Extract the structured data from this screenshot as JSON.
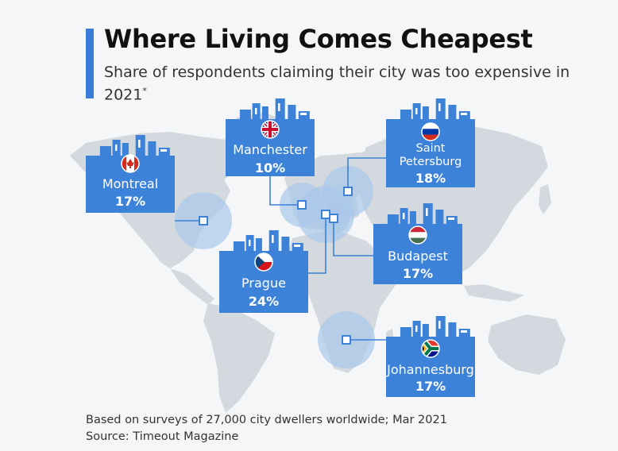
{
  "title": "Where Living Comes Cheapest",
  "subtitle": "Share of respondents claiming their city was too expensive in 2021",
  "subtitle_mark": "*",
  "footer": {
    "note": "Based on surveys of 27,000 city dwellers worldwide; Mar 2021",
    "source": "Source: Timeout Magazine"
  },
  "colors": {
    "accent": "#3a7bd5",
    "card": "#3b82d8",
    "map": "#d3d9df",
    "halo": "#a9c8ea"
  },
  "chart_data": {
    "type": "table",
    "unit": "%",
    "title": "Where Living Comes Cheapest",
    "subtitle": "Share of respondents claiming their city was too expensive in 2021",
    "cities": [
      {
        "name": "Montreal",
        "value": 17,
        "label": "17%",
        "flag": "canada-flag-icon"
      },
      {
        "name": "Manchester",
        "value": 10,
        "label": "10%",
        "flag": "uk-flag-icon"
      },
      {
        "name": "Saint\nPetersburg",
        "value": 18,
        "label": "18%",
        "flag": "russia-flag-icon"
      },
      {
        "name": "Prague",
        "value": 24,
        "label": "24%",
        "flag": "czech-flag-icon"
      },
      {
        "name": "Budapest",
        "value": 17,
        "label": "17%",
        "flag": "hungary-flag-icon"
      },
      {
        "name": "Johannesburg",
        "value": 17,
        "label": "17%",
        "flag": "south-africa-flag-icon"
      }
    ]
  }
}
